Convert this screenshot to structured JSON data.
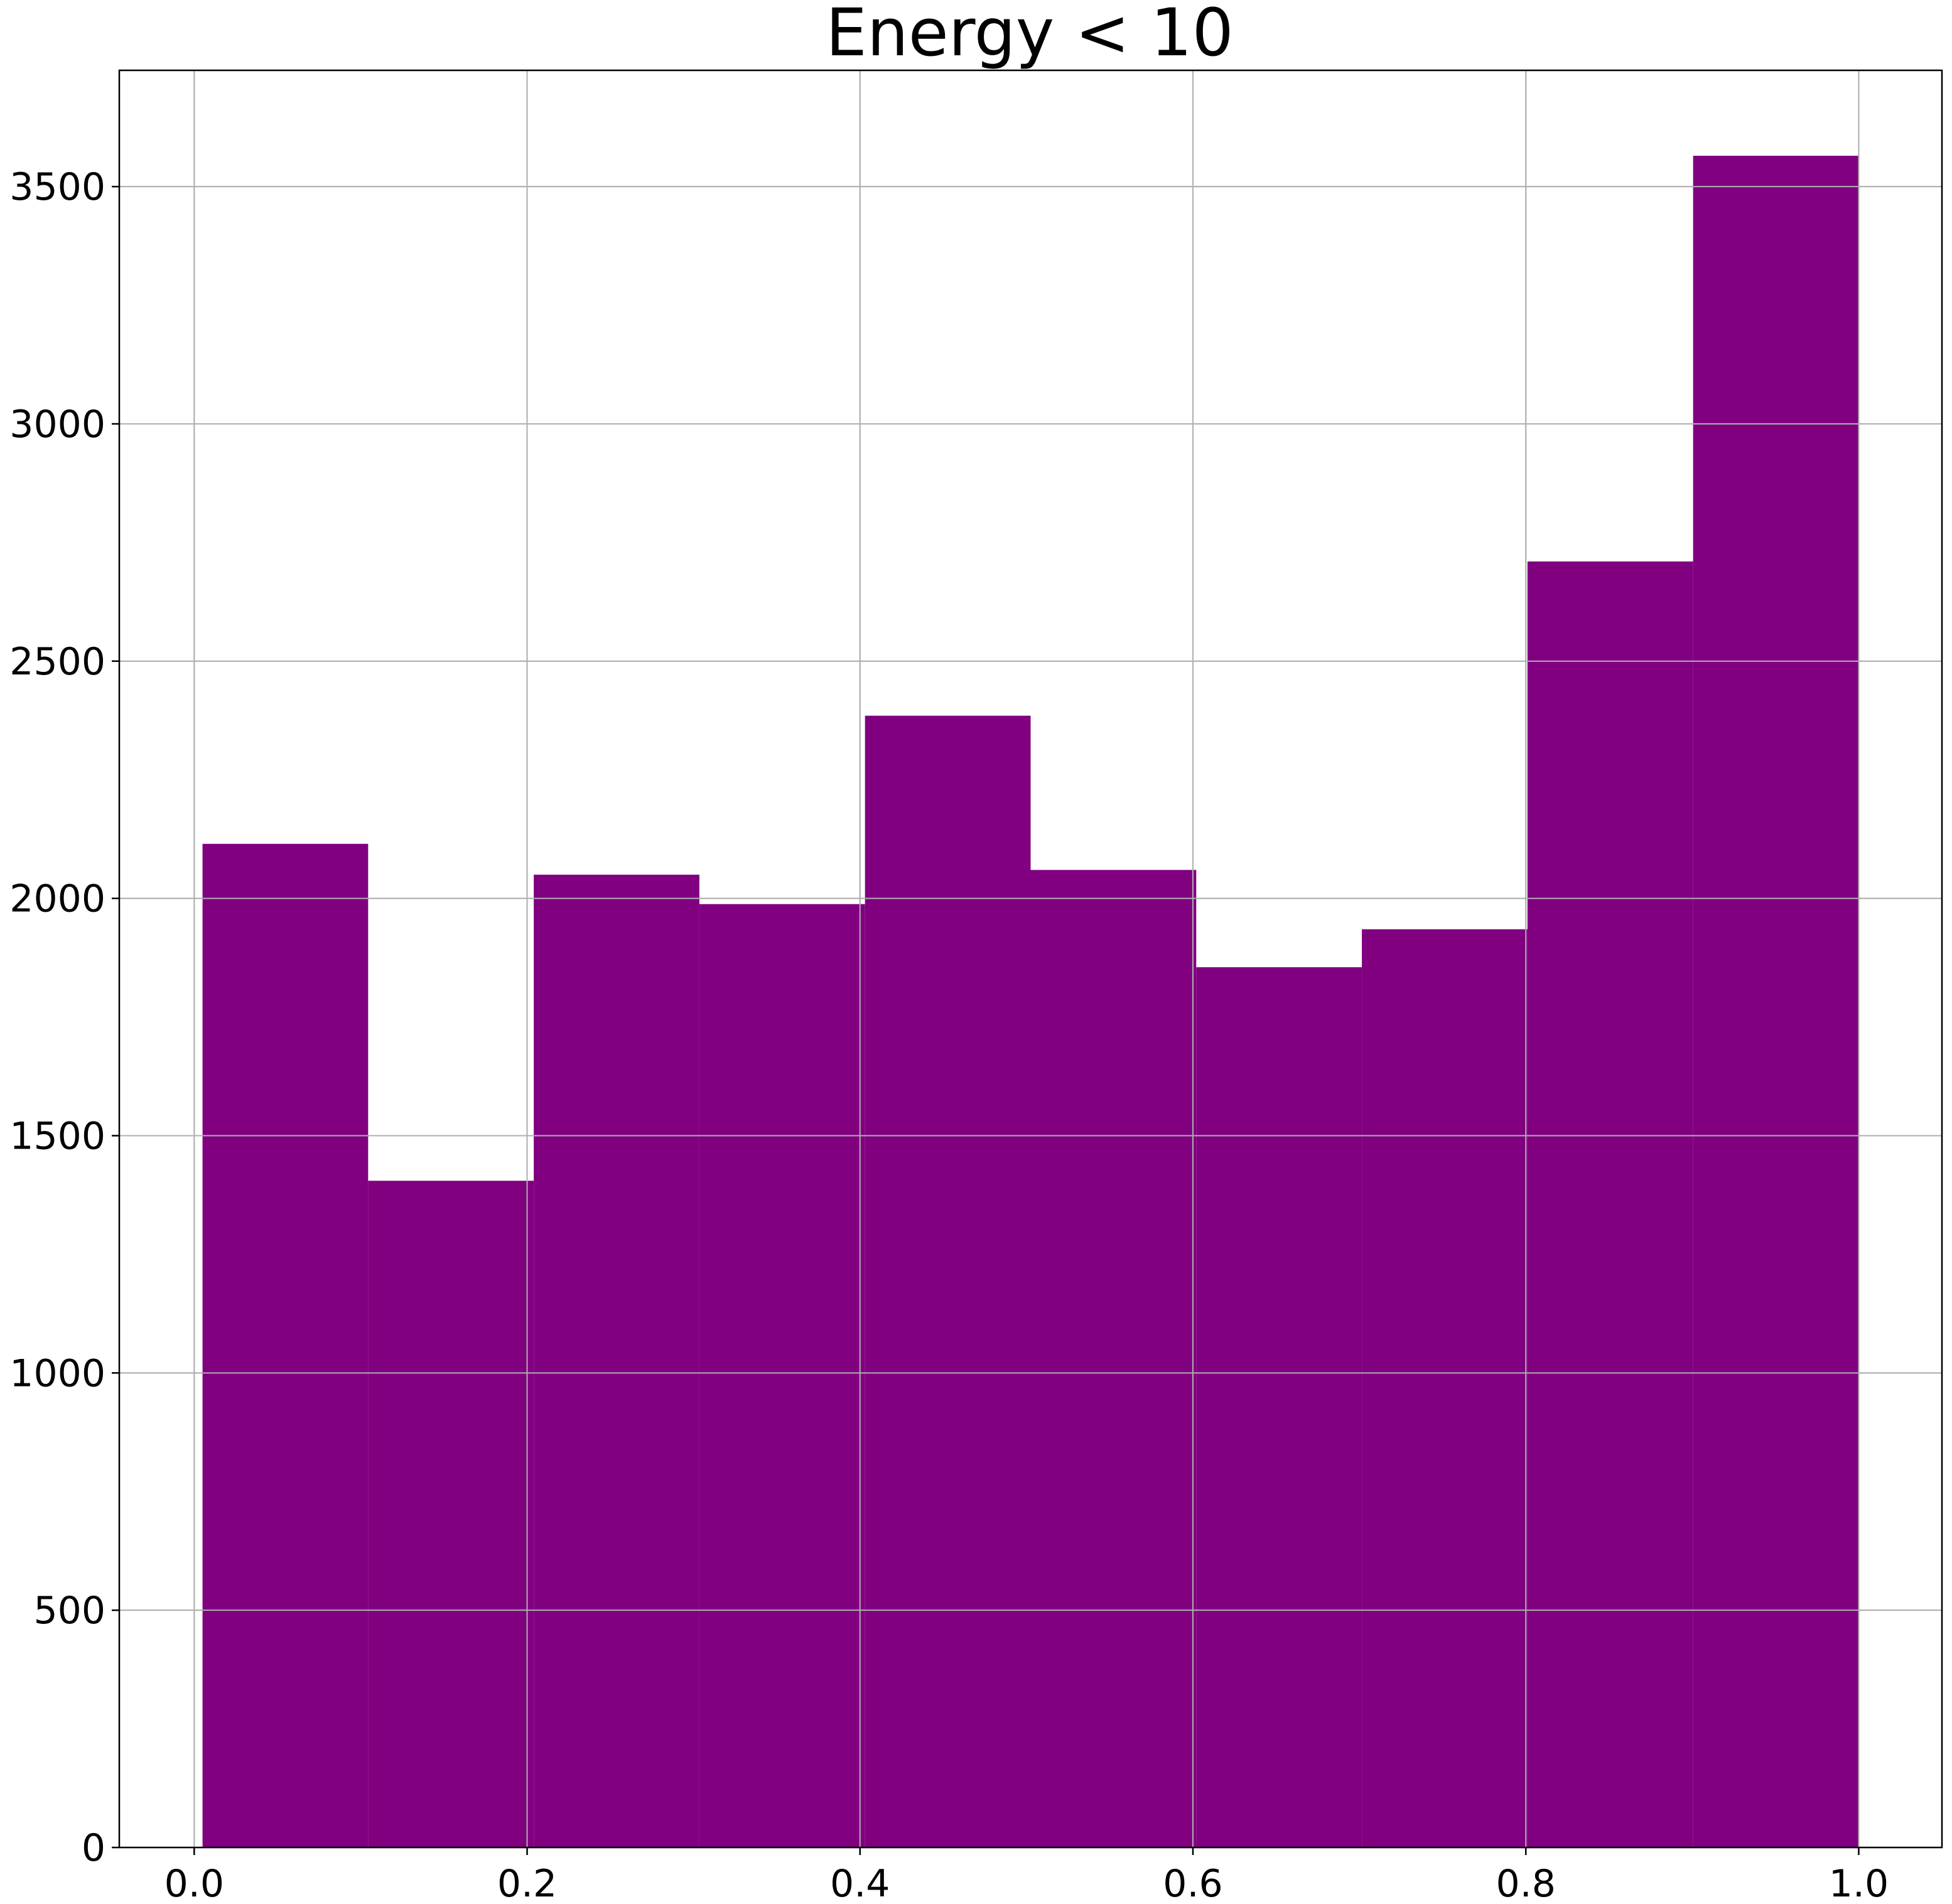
{
  "chart_data": {
    "type": "bar",
    "title": "Energy < 10",
    "xlabel": "",
    "ylabel": "",
    "bin_edges": [
      0.005,
      0.1045,
      0.204,
      0.3035,
      0.403,
      0.5025,
      0.602,
      0.7015,
      0.801,
      0.9005,
      1.0
    ],
    "values": [
      2115,
      1405,
      2050,
      1988,
      2385,
      2060,
      1855,
      1935,
      2710,
      3565
    ],
    "xlim": [
      -0.045,
      1.05
    ],
    "ylim": [
      0,
      3745
    ],
    "x_ticks": [
      0.0,
      0.2,
      0.4,
      0.6,
      0.8,
      1.0
    ],
    "x_tick_labels": [
      "0.0",
      "0.2",
      "0.4",
      "0.6",
      "0.8",
      "1.0"
    ],
    "y_ticks": [
      0,
      500,
      1000,
      1500,
      2000,
      2500,
      3000,
      3500
    ],
    "y_tick_labels": [
      "0",
      "500",
      "1000",
      "1500",
      "2000",
      "2500",
      "3000",
      "3500"
    ],
    "grid": true,
    "bar_color": "#800080",
    "grid_color": "#b0b0b0"
  }
}
